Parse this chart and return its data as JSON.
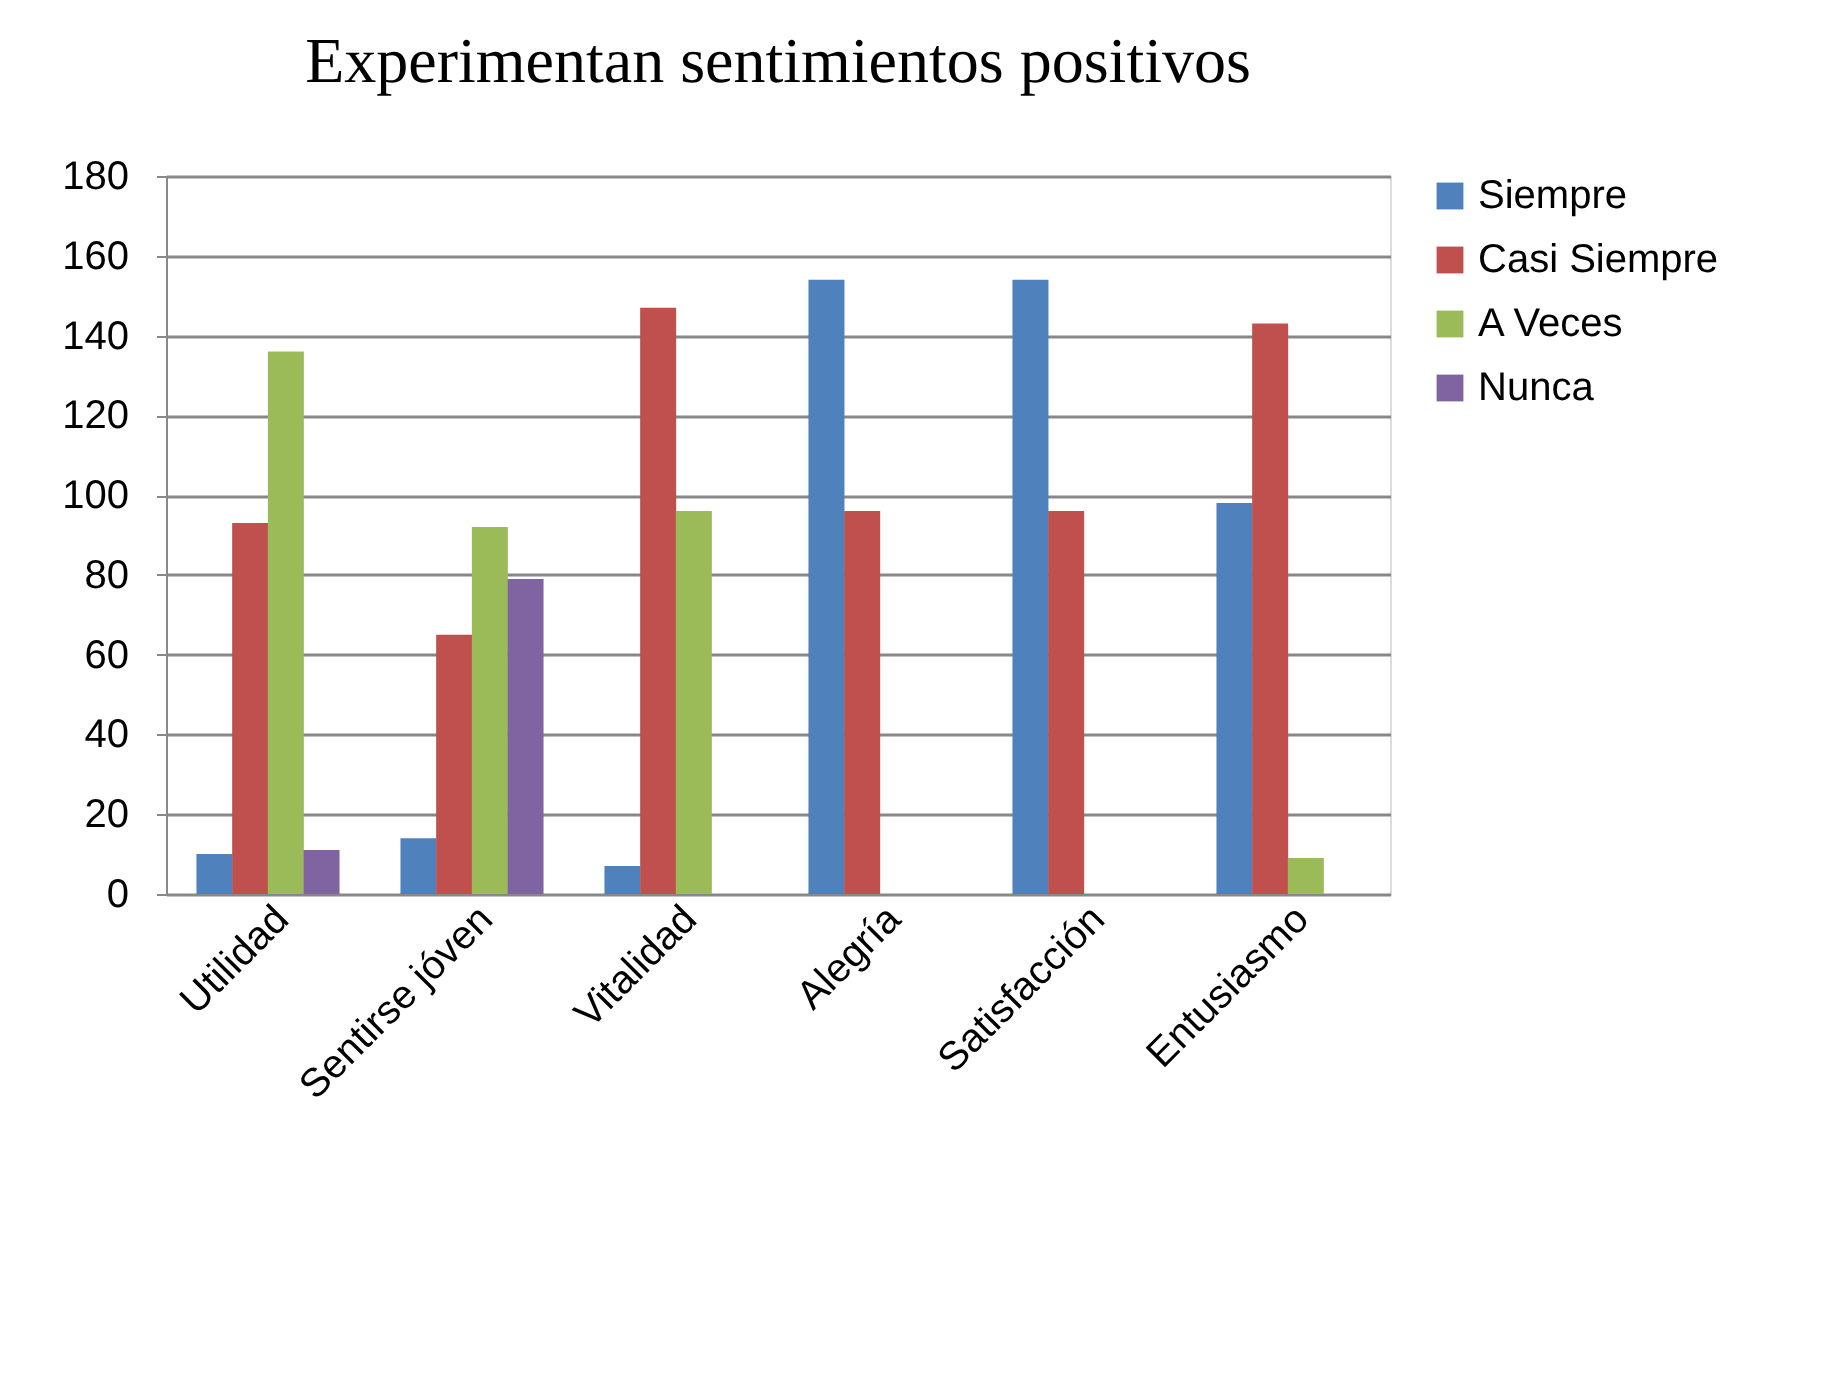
{
  "chart_data": {
    "type": "bar",
    "title": "Experimentan sentimientos positivos",
    "categories": [
      "Utilidad",
      "Sentirse jóven",
      "Vitalidad",
      "Alegría",
      "Satisfacción",
      "Entusiasmo"
    ],
    "series": [
      {
        "name": "Siempre",
        "color": "#4f81bd",
        "values": [
          10,
          14,
          7,
          154,
          154,
          98
        ]
      },
      {
        "name": "Casi Siempre",
        "color": "#c0504d",
        "values": [
          93,
          65,
          147,
          96,
          96,
          143
        ]
      },
      {
        "name": "A Veces",
        "color": "#9bbb59",
        "values": [
          136,
          92,
          96,
          0,
          0,
          9
        ]
      },
      {
        "name": "Nunca",
        "color": "#8064a2",
        "values": [
          11,
          79,
          0,
          0,
          0,
          0
        ]
      }
    ],
    "ylim": [
      0,
      180
    ],
    "yticks": [
      0,
      20,
      40,
      60,
      80,
      100,
      120,
      140,
      160,
      180
    ],
    "grid": "y",
    "legend": "right"
  }
}
